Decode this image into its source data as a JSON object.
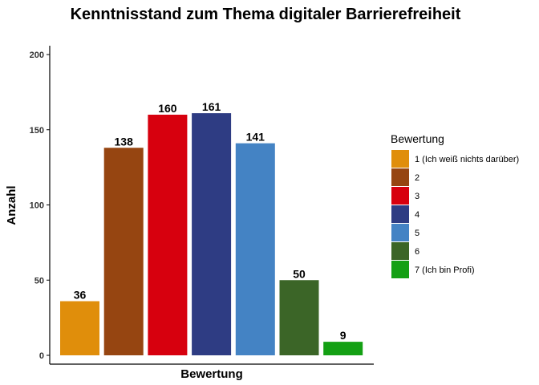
{
  "chart_data": {
    "type": "bar",
    "title": "Kenntnisstand zum Thema digitaler Barrierefreiheit",
    "xlabel": "Bewertung",
    "ylabel": "Anzahl",
    "ylim": [
      0,
      200
    ],
    "yticks": [
      0,
      50,
      100,
      150,
      200
    ],
    "grid": false,
    "legend": {
      "title": "Bewertung",
      "placement": "right"
    },
    "categories": [
      "1 (Ich weiß nichts darüber)",
      "2",
      "3",
      "4",
      "5",
      "6",
      "7 (Ich bin Profi)"
    ],
    "values": [
      36,
      138,
      160,
      161,
      141,
      50,
      9
    ],
    "colors": [
      "#E08E0B",
      "#964511",
      "#D7000E",
      "#2E3C83",
      "#4483C4",
      "#3B6527",
      "#14A014"
    ]
  }
}
